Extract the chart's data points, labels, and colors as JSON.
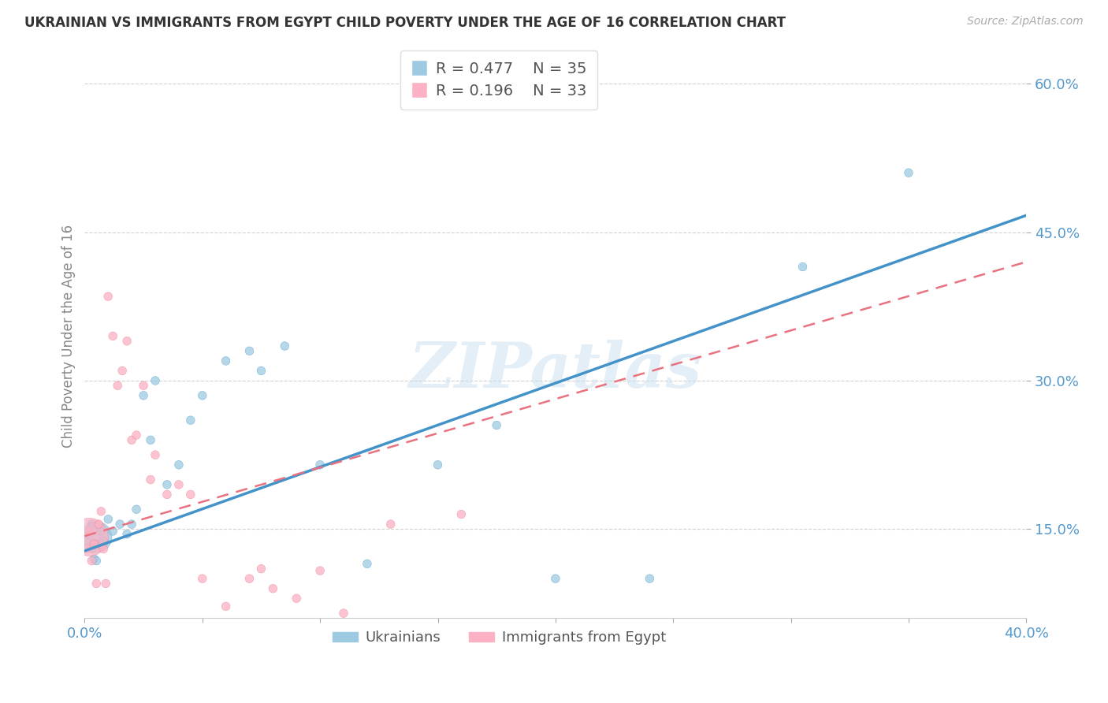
{
  "title": "UKRAINIAN VS IMMIGRANTS FROM EGYPT CHILD POVERTY UNDER THE AGE OF 16 CORRELATION CHART",
  "source": "Source: ZipAtlas.com",
  "ylabel": "Child Poverty Under the Age of 16",
  "legend_label1": "Ukrainians",
  "legend_label2": "Immigrants from Egypt",
  "R1": 0.477,
  "N1": 35,
  "R2": 0.196,
  "N2": 33,
  "xmin": 0.0,
  "xmax": 0.4,
  "ymin": 0.06,
  "ymax": 0.63,
  "yticks": [
    0.15,
    0.3,
    0.45,
    0.6
  ],
  "ytick_labels": [
    "15.0%",
    "30.0%",
    "45.0%",
    "60.0%"
  ],
  "xticks": [
    0.0,
    0.05,
    0.1,
    0.15,
    0.2,
    0.25,
    0.3,
    0.35,
    0.4
  ],
  "xtick_labels_bottom": [
    "0.0%",
    "",
    "",
    "",
    "",
    "",
    "",
    "",
    "40.0%"
  ],
  "color_blue": "#9ecae1",
  "color_pink": "#fcb1c4",
  "color_blue_line": "#4393c9",
  "color_pink_line": "#e8727f",
  "color_axis_text": "#5599cc",
  "background_color": "#ffffff",
  "watermark": "ZIPatlas",
  "blue_points_x": [
    0.001,
    0.002,
    0.003,
    0.003,
    0.004,
    0.005,
    0.005,
    0.006,
    0.007,
    0.008,
    0.01,
    0.012,
    0.015,
    0.018,
    0.02,
    0.022,
    0.025,
    0.028,
    0.03,
    0.035,
    0.04,
    0.045,
    0.05,
    0.06,
    0.07,
    0.075,
    0.085,
    0.1,
    0.12,
    0.15,
    0.175,
    0.2,
    0.24,
    0.305,
    0.35
  ],
  "blue_points_y": [
    0.138,
    0.145,
    0.13,
    0.155,
    0.12,
    0.142,
    0.118,
    0.135,
    0.148,
    0.138,
    0.16,
    0.148,
    0.155,
    0.145,
    0.155,
    0.17,
    0.285,
    0.24,
    0.3,
    0.195,
    0.215,
    0.26,
    0.285,
    0.32,
    0.33,
    0.31,
    0.335,
    0.215,
    0.115,
    0.215,
    0.255,
    0.1,
    0.1,
    0.415,
    0.51
  ],
  "blue_sizes": [
    60,
    60,
    60,
    60,
    60,
    800,
    60,
    60,
    60,
    60,
    60,
    60,
    60,
    60,
    60,
    60,
    60,
    60,
    60,
    60,
    60,
    60,
    60,
    60,
    60,
    60,
    60,
    60,
    60,
    60,
    60,
    60,
    60,
    60,
    60
  ],
  "pink_points_x": [
    0.001,
    0.002,
    0.002,
    0.003,
    0.004,
    0.005,
    0.006,
    0.007,
    0.008,
    0.009,
    0.01,
    0.012,
    0.014,
    0.016,
    0.018,
    0.02,
    0.022,
    0.025,
    0.028,
    0.03,
    0.035,
    0.04,
    0.045,
    0.05,
    0.06,
    0.07,
    0.075,
    0.08,
    0.09,
    0.1,
    0.11,
    0.13,
    0.16
  ],
  "pink_points_y": [
    0.13,
    0.148,
    0.142,
    0.118,
    0.135,
    0.095,
    0.155,
    0.168,
    0.13,
    0.095,
    0.385,
    0.345,
    0.295,
    0.31,
    0.34,
    0.24,
    0.245,
    0.295,
    0.2,
    0.225,
    0.185,
    0.195,
    0.185,
    0.1,
    0.072,
    0.1,
    0.11,
    0.09,
    0.08,
    0.108,
    0.065,
    0.155,
    0.165
  ],
  "pink_sizes": [
    60,
    60,
    1200,
    60,
    60,
    60,
    60,
    60,
    60,
    60,
    60,
    60,
    60,
    60,
    60,
    60,
    60,
    60,
    60,
    60,
    60,
    60,
    60,
    60,
    60,
    60,
    60,
    60,
    60,
    60,
    60,
    60,
    60
  ],
  "blue_line_x0": 0.0,
  "blue_line_y0": 0.128,
  "blue_line_x1": 0.4,
  "blue_line_y1": 0.467,
  "pink_line_x0": 0.0,
  "pink_line_y0": 0.143,
  "pink_line_x1": 0.4,
  "pink_line_y1": 0.42
}
